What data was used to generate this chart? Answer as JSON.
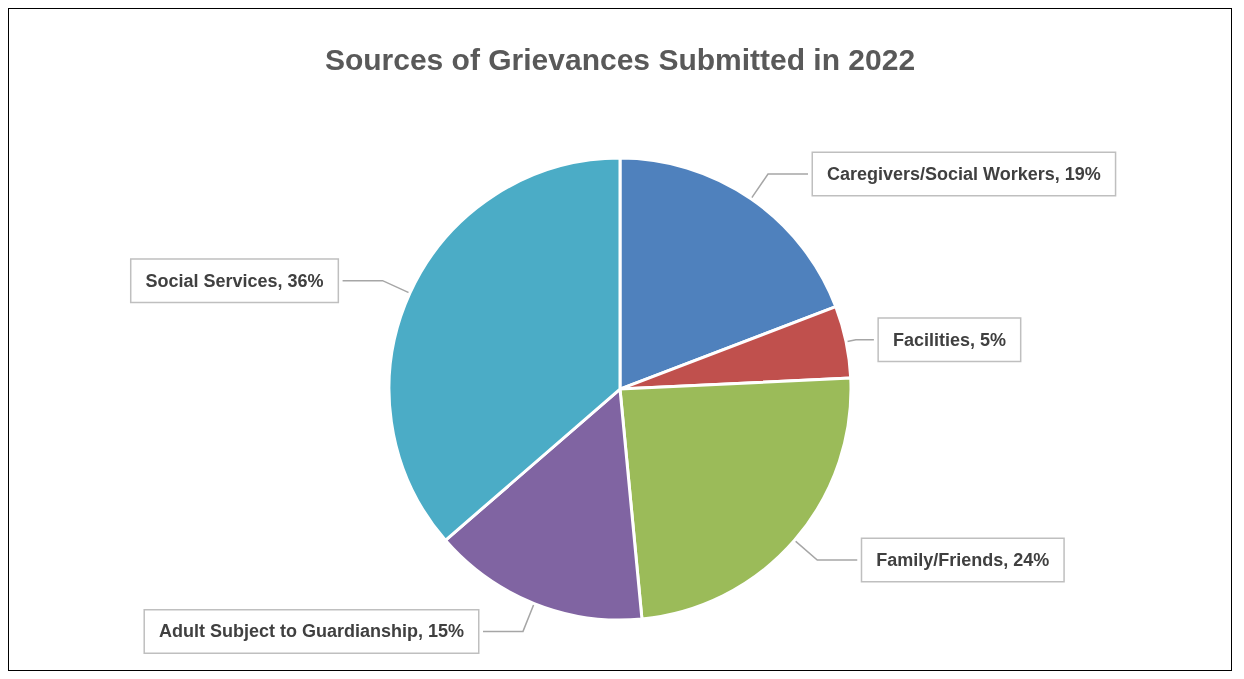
{
  "chart_data": {
    "type": "pie",
    "title": "Sources of Grievances Submitted in 2022",
    "categories": [
      "Caregivers/Social Workers",
      "Facilities",
      "Family/Friends",
      "Adult Subject to Guardianship",
      "Social Services"
    ],
    "values": [
      19,
      5,
      24,
      15,
      36
    ],
    "colors": [
      "#4f81bd",
      "#c0504d",
      "#9bbb59",
      "#8064a2",
      "#4bacc6"
    ],
    "value_labels": [
      "19%",
      "5%",
      "24%",
      "15%",
      "36%"
    ]
  }
}
